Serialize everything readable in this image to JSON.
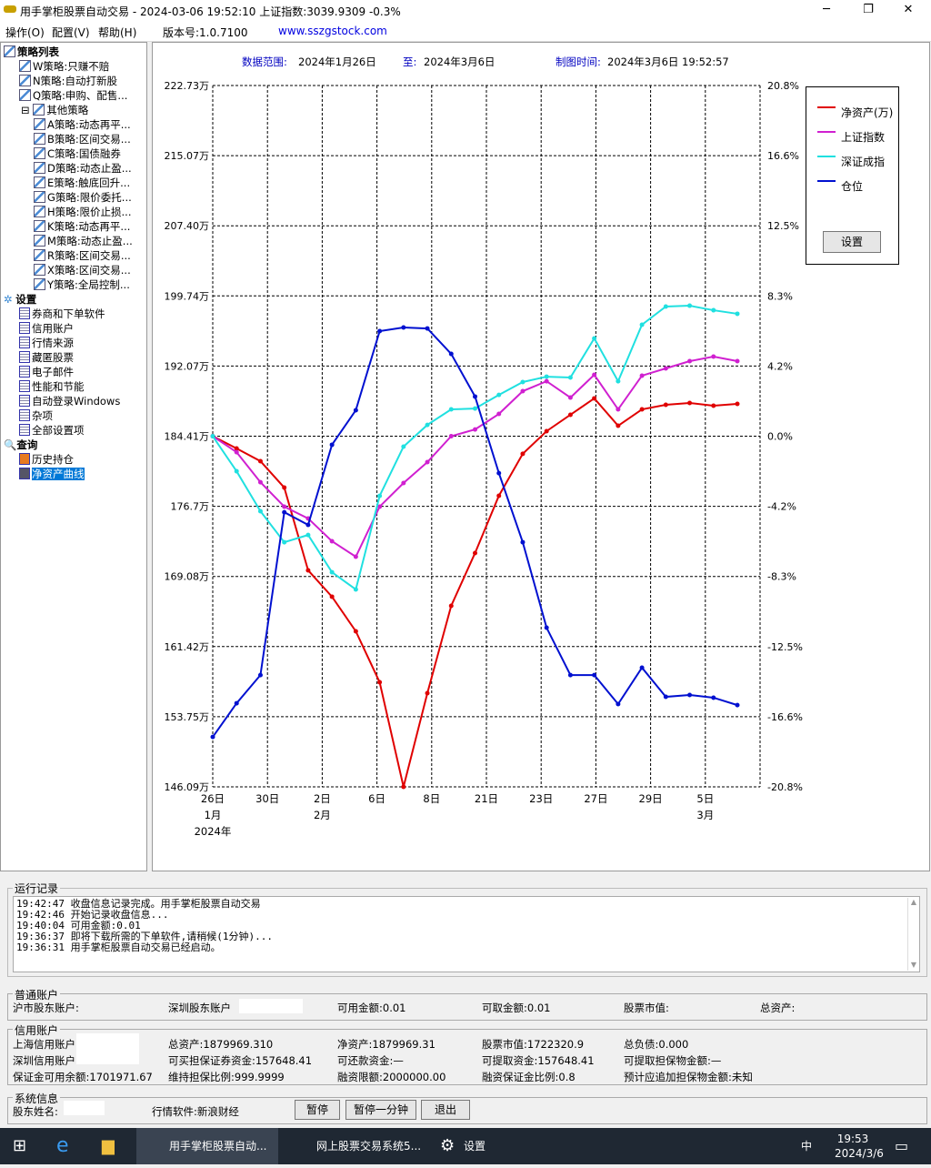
{
  "window": {
    "title": "用手掌柜股票自动交易 - 2024-03-06 19:52:10 上证指数:3039.9309 -0.3%",
    "minimize": "─",
    "maximize": "❐",
    "close": "✕"
  },
  "menu": [
    "操作(O)",
    "配置(V)",
    "帮助(H)"
  ],
  "version": "版本号:1.0.7100",
  "website": "www.sszgstock.com",
  "sidebar": {
    "strategy_root": "策略列表",
    "strategies": [
      "W策略:只赚不赔",
      "N策略:自动打新股",
      "Q策略:申购、配售..."
    ],
    "other_root": "其他策略",
    "other": [
      "A策略:动态再平...",
      "B策略:区间交易...",
      "C策略:国债融券",
      "D策略:动态止盈...",
      "E策略:触底回升...",
      "G策略:限价委托...",
      "H策略:限价止损...",
      "K策略:动态再平...",
      "M策略:动态止盈...",
      "R策略:区间交易...",
      "X策略:区间交易...",
      "Y策略:全局控制..."
    ],
    "settings_root": "设置",
    "settings": [
      "券商和下单软件",
      "信用账户",
      "行情来源",
      "藏匿股票",
      "电子邮件",
      "性能和节能",
      "自动登录Windows",
      "杂项",
      "全部设置项"
    ],
    "query_root": "查询",
    "query": [
      "历史持仓",
      "净资产曲线"
    ]
  },
  "chart_header": {
    "range_label": "数据范围:",
    "range_start": "2024年1月26日",
    "to_label": "至:",
    "range_end": "2024年3月6日",
    "time_label": "制图时间:",
    "time_value": "2024年3月6日 19:52:57"
  },
  "chart_data": {
    "type": "line",
    "x": [
      "2024-01-26",
      "2024-01-29",
      "2024-01-30",
      "2024-01-31",
      "2024-02-01",
      "2024-02-02",
      "2024-02-05",
      "2024-02-06",
      "2024-02-07",
      "2024-02-08",
      "2024-02-19",
      "2024-02-20",
      "2024-02-21",
      "2024-02-22",
      "2024-02-23",
      "2024-02-26",
      "2024-02-27",
      "2024-02-28",
      "2024-02-29",
      "2024-03-01",
      "2024-03-04",
      "2024-03-05",
      "2024-03-06"
    ],
    "x_ticks": [
      [
        "26日",
        "1月",
        "2024年"
      ],
      [
        "30日"
      ],
      [
        "2日",
        "2月"
      ],
      [
        "6日"
      ],
      [
        "8日"
      ],
      [
        "21日"
      ],
      [
        "23日"
      ],
      [
        "27日"
      ],
      [
        "29日"
      ],
      [
        "5日",
        "3月"
      ]
    ],
    "y_left_ticks": [
      "222.73万",
      "215.07万",
      "207.40万",
      "199.74万",
      "192.07万",
      "184.41万",
      "176.7万",
      "169.08万",
      "161.42万",
      "153.75万",
      "146.09万"
    ],
    "y_left_range": [
      146.09,
      222.73
    ],
    "y_right_ticks": [
      "20.8%",
      "16.6%",
      "12.5%",
      "8.3%",
      "4.2%",
      "0.0%",
      "-4.2%",
      "-8.3%",
      "-12.5%",
      "-16.6%",
      "-20.8%"
    ],
    "y_right_range": [
      -20.8,
      20.8
    ],
    "grid": true,
    "legend_position": "right",
    "series": [
      {
        "name": "净资产(万)",
        "axis": "left",
        "color": "#e00000",
        "values": [
          184.41,
          183.07,
          181.68,
          178.79,
          169.75,
          166.87,
          163.09,
          157.52,
          146.09,
          156.33,
          165.87,
          171.64,
          177.9,
          182.48,
          184.96,
          186.75,
          188.54,
          185.55,
          187.34,
          187.84,
          188.04,
          187.74,
          187.94
        ]
      },
      {
        "name": "上证指数",
        "axis": "right",
        "color": "#d020d0",
        "values": [
          0,
          -0.95,
          -2.73,
          -4.18,
          -4.88,
          -6.23,
          -7.15,
          -4.18,
          -2.78,
          -1.54,
          0,
          0.4,
          1.32,
          2.67,
          3.26,
          2.29,
          3.64,
          1.59,
          3.59,
          4.02,
          4.45,
          4.72,
          4.45
        ]
      },
      {
        "name": "深证成指",
        "axis": "right",
        "color": "#20e0e0",
        "values": [
          0,
          -2.08,
          -4.45,
          -6.29,
          -5.86,
          -8.07,
          -9.09,
          -3.54,
          -0.62,
          0.67,
          1.59,
          1.64,
          2.45,
          3.21,
          3.53,
          3.48,
          5.8,
          3.26,
          6.61,
          7.69,
          7.74,
          7.47,
          7.26
        ]
      },
      {
        "name": "仓位",
        "axis": "right",
        "color": "#0010d0",
        "values": [
          -17.84,
          -15.84,
          -14.17,
          -4.51,
          -5.26,
          -0.51,
          1.54,
          6.23,
          6.45,
          6.39,
          4.88,
          2.35,
          -2.19,
          -6.29,
          -11.36,
          -14.17,
          -14.17,
          -15.89,
          -13.73,
          -15.46,
          -15.35,
          -15.51,
          -15.95
        ]
      }
    ]
  },
  "legend": {
    "settings_button": "设置"
  },
  "log": {
    "title": "运行记录",
    "lines": [
      "19:42:47 收盘信息记录完成。用手掌柜股票自动交易",
      "19:42:46 开始记录收盘信息...",
      "19:40:04 可用金额:0.01",
      "19:36:37 即将下载所需的下单软件,请稍候(1分钟)...",
      "19:36:31 用手掌柜股票自动交易已经启动。"
    ]
  },
  "normal_account": {
    "title": "普通账户",
    "sh": "沪市股东账户:",
    "sz": "深圳股东账户",
    "available": "可用金额:0.01",
    "withdrawable": "可取金额:0.01",
    "stock_value": "股票市值:",
    "total": "总资产:"
  },
  "credit_account": {
    "title": "信用账户",
    "rows": [
      [
        "上海信用账户",
        "总资产:1879969.310",
        "净资产:1879969.31",
        "股票市值:1722320.9",
        "总负债:0.000"
      ],
      [
        "深圳信用账户",
        "可买担保证券资金:157648.41",
        "可还款资金:—",
        "可提取资金:157648.41",
        "可提取担保物金额:—"
      ],
      [
        "保证金可用余额:1701971.67",
        "维持担保比例:999.9999",
        "融资限额:2000000.00",
        "融资保证金比例:0.8",
        "预计应追加担保物金额:未知"
      ]
    ]
  },
  "system": {
    "title": "系统信息",
    "holder": "股东姓名:",
    "quote_software": "行情软件:新浪财经",
    "pause": "暂停",
    "pause_minute": "暂停一分钟",
    "exit": "退出"
  },
  "taskbar": {
    "apps": [
      "用手掌柜股票自动...",
      "网上股票交易系统5...",
      "设置"
    ],
    "ime": "中",
    "time": "19:53",
    "date": "2024/3/6",
    "notif": "1"
  }
}
